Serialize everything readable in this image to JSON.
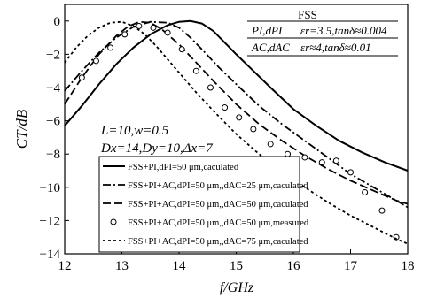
{
  "chart_data": {
    "type": "line",
    "xlabel": "f/GHz",
    "ylabel": "CT/dB",
    "xlim": [
      12,
      18
    ],
    "ylim": [
      -14,
      1
    ],
    "xticks": [
      12,
      13,
      14,
      15,
      16,
      17,
      18
    ],
    "yticks": [
      0,
      -2,
      -4,
      -6,
      -8,
      -10,
      -12,
      -14
    ],
    "xtick_labels": [
      "12",
      "13",
      "14",
      "15",
      "16",
      "17",
      "18"
    ],
    "ytick_labels": [
      "0",
      "−2",
      "−4",
      "−6",
      "−8",
      "−10",
      "−12",
      "−14"
    ],
    "grid": false,
    "annotations": {
      "params_line1": "L=10,w=0.5",
      "params_line2": "Dx=14,Dy=10,Δx=7",
      "box_line1": "FSS",
      "box_line2_left": "PI,dPI",
      "box_line2_right": "εr=3.5,tanδ≈0.004",
      "box_line3_left": "AC,dAC",
      "box_line3_right": "εr≈4,tanδ≈0.01"
    },
    "legend_position": "bottom-left",
    "series": [
      {
        "name": "FSS+PI,dPI=50 μm,caculated",
        "style": "solid",
        "x": [
          12.0,
          12.3,
          12.6,
          12.9,
          13.2,
          13.5,
          13.8,
          14.0,
          14.2,
          14.4,
          14.6,
          14.8,
          15.0,
          15.3,
          15.6,
          16.0,
          16.4,
          16.8,
          17.2,
          17.6,
          18.0
        ],
        "y": [
          -6.3,
          -5.1,
          -3.8,
          -2.6,
          -1.6,
          -0.8,
          -0.25,
          -0.05,
          0.0,
          -0.15,
          -0.6,
          -1.3,
          -2.0,
          -3.0,
          -4.0,
          -5.3,
          -6.3,
          -7.2,
          -7.9,
          -8.5,
          -9.0
        ]
      },
      {
        "name": "FSS+PI+AC,dPI=50 μm,,dAC=25 μm,caculated",
        "style": "dashdot",
        "x": [
          12.0,
          12.3,
          12.6,
          12.9,
          13.2,
          13.5,
          13.8,
          14.0,
          14.2,
          14.4,
          14.7,
          15.0,
          15.4,
          15.8,
          16.2,
          16.6,
          17.0,
          17.4,
          17.8,
          18.0
        ],
        "y": [
          -4.2,
          -3.0,
          -1.9,
          -1.0,
          -0.35,
          -0.05,
          -0.1,
          -0.4,
          -1.0,
          -1.7,
          -2.8,
          -3.8,
          -5.1,
          -6.2,
          -7.2,
          -8.2,
          -9.2,
          -10.0,
          -10.8,
          -11.2
        ]
      },
      {
        "name": "FSS+PI+AC,dPI=50 μm,,dAC=50 μm,caculated",
        "style": "dashed",
        "x": [
          12.0,
          12.3,
          12.6,
          12.9,
          13.1,
          13.3,
          13.5,
          13.7,
          14.0,
          14.3,
          14.6,
          15.0,
          15.4,
          15.8,
          16.2,
          16.6,
          17.0,
          17.4,
          17.8,
          18.0
        ],
        "y": [
          -5.0,
          -3.4,
          -2.0,
          -0.9,
          -0.35,
          -0.05,
          -0.1,
          -0.5,
          -1.4,
          -2.5,
          -3.6,
          -5.0,
          -6.2,
          -7.2,
          -8.1,
          -8.9,
          -9.6,
          -10.2,
          -10.8,
          -11.0
        ]
      },
      {
        "name": "FSS+PI+AC,dPI=50 μm,,dAC=50 μm,measured",
        "style": "markers",
        "x": [
          12.3,
          12.55,
          12.8,
          13.05,
          13.3,
          13.55,
          13.8,
          14.05,
          14.3,
          14.55,
          14.8,
          15.05,
          15.3,
          15.6,
          15.9,
          16.2,
          16.5,
          16.75,
          17.0,
          17.25,
          17.55,
          17.8
        ],
        "y": [
          -3.4,
          -2.4,
          -1.6,
          -0.8,
          -0.3,
          -0.4,
          -0.7,
          -1.7,
          -3.0,
          -4.0,
          -5.2,
          -5.8,
          -6.5,
          -7.4,
          -8.0,
          -8.2,
          -8.5,
          -8.4,
          -9.1,
          -10.3,
          -11.4,
          -13.0
        ]
      },
      {
        "name": "FSS+PI+AC,dPI=50 μm,,dAC=75 μm,caculated",
        "style": "dotted",
        "x": [
          12.0,
          12.2,
          12.4,
          12.6,
          12.8,
          13.0,
          13.2,
          13.4,
          13.6,
          13.8,
          14.0,
          14.3,
          14.6,
          15.0,
          15.4,
          15.8,
          16.2,
          16.6,
          17.0,
          17.4,
          17.8,
          18.0
        ],
        "y": [
          -2.5,
          -1.6,
          -0.9,
          -0.4,
          -0.1,
          -0.05,
          -0.3,
          -0.8,
          -1.5,
          -2.3,
          -3.1,
          -4.3,
          -5.4,
          -6.8,
          -8.0,
          -9.1,
          -10.0,
          -10.9,
          -11.7,
          -12.4,
          -13.1,
          -13.4
        ]
      }
    ]
  }
}
